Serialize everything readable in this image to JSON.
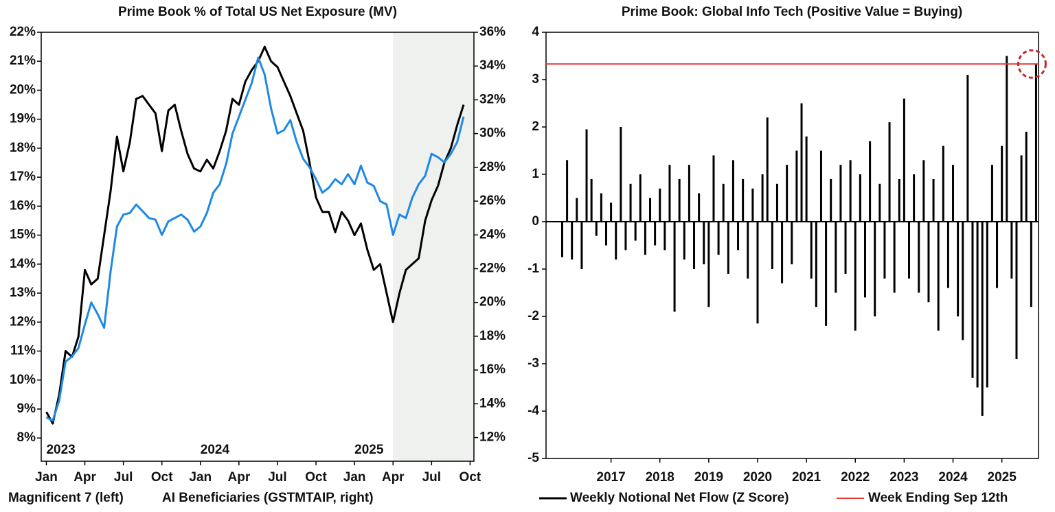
{
  "chart_data": [
    {
      "type": "line",
      "title": "Prime Book % of Total US Net Exposure (MV)",
      "x": [
        0,
        0.5,
        1,
        1.5,
        2,
        2.5,
        3,
        3.5,
        4,
        4.5,
        5,
        5.5,
        6,
        6.5,
        7,
        7.5,
        8,
        8.5,
        9,
        9.5,
        10,
        10.5,
        11,
        11.5,
        12,
        12.5,
        13,
        13.5,
        14,
        14.5,
        15,
        15.5,
        16,
        16.5,
        17,
        17.5,
        18,
        18.5,
        19,
        19.5,
        20,
        20.5,
        21,
        21.5,
        22,
        22.5,
        23,
        23.5,
        24,
        24.5,
        25,
        25.5,
        26,
        26.5,
        27,
        27.5,
        28,
        28.5,
        29,
        29.5,
        30,
        30.5,
        31,
        31.5,
        32,
        32.5
      ],
      "xlim": [
        -0.4,
        33.3
      ],
      "xticks": [
        {
          "value": 0,
          "label": "Jan"
        },
        {
          "value": 3,
          "label": "Apr"
        },
        {
          "value": 6,
          "label": "Jul"
        },
        {
          "value": 9,
          "label": "Oct"
        },
        {
          "value": 12,
          "label": "Jan"
        },
        {
          "value": 15,
          "label": "Apr"
        },
        {
          "value": 18,
          "label": "Jul"
        },
        {
          "value": 21,
          "label": "Oct"
        },
        {
          "value": 24,
          "label": "Jan"
        },
        {
          "value": 27,
          "label": "Apr"
        },
        {
          "value": 30,
          "label": "Jul"
        },
        {
          "value": 33,
          "label": "Oct"
        }
      ],
      "year_labels": [
        {
          "value": 0,
          "label": "2023"
        },
        {
          "value": 12,
          "label": "2024"
        },
        {
          "value": 24,
          "label": "2025"
        }
      ],
      "shaded_x": [
        27,
        33.3
      ],
      "shade_color": "#eef1ee",
      "ylim": [
        7.2,
        22
      ],
      "yticks": [
        {
          "value": 8,
          "label": "8%"
        },
        {
          "value": 9,
          "label": "9%"
        },
        {
          "value": 10,
          "label": "10%"
        },
        {
          "value": 11,
          "label": "11%"
        },
        {
          "value": 12,
          "label": "12%"
        },
        {
          "value": 13,
          "label": "13%"
        },
        {
          "value": 14,
          "label": "14%"
        },
        {
          "value": 15,
          "label": "15%"
        },
        {
          "value": 16,
          "label": "16%"
        },
        {
          "value": 17,
          "label": "17%"
        },
        {
          "value": 18,
          "label": "18%"
        },
        {
          "value": 19,
          "label": "19%"
        },
        {
          "value": 20,
          "label": "20%"
        },
        {
          "value": 21,
          "label": "21%"
        },
        {
          "value": 22,
          "label": "22%"
        }
      ],
      "y2lim": [
        10.6,
        36
      ],
      "y2ticks": [
        {
          "value": 12,
          "label": "12%"
        },
        {
          "value": 14,
          "label": "14%"
        },
        {
          "value": 16,
          "label": "16%"
        },
        {
          "value": 18,
          "label": "18%"
        },
        {
          "value": 20,
          "label": "20%"
        },
        {
          "value": 22,
          "label": "22%"
        },
        {
          "value": 24,
          "label": "24%"
        },
        {
          "value": 26,
          "label": "26%"
        },
        {
          "value": 28,
          "label": "28%"
        },
        {
          "value": 30,
          "label": "30%"
        },
        {
          "value": 32,
          "label": "32%"
        },
        {
          "value": 34,
          "label": "34%"
        },
        {
          "value": 36,
          "label": "36%"
        }
      ],
      "series": [
        {
          "name": "Magnificent 7 (left)",
          "color": "#000000",
          "values": [
            8.9,
            8.5,
            9.5,
            11.0,
            10.8,
            11.5,
            13.8,
            13.3,
            13.5,
            15.0,
            16.5,
            18.4,
            17.2,
            18.2,
            19.7,
            19.8,
            19.5,
            19.2,
            17.9,
            19.3,
            19.5,
            18.6,
            17.8,
            17.3,
            17.2,
            17.6,
            17.3,
            17.9,
            18.6,
            19.7,
            19.5,
            20.3,
            20.7,
            21.0,
            21.5,
            21.0,
            20.8,
            20.3,
            19.8,
            19.2,
            18.6,
            17.5,
            16.3,
            15.8,
            15.8,
            15.1,
            15.8,
            15.5,
            15.0,
            15.4,
            14.5,
            13.8,
            14.0,
            13.0,
            12.0,
            13.0,
            13.8,
            14.0,
            14.2,
            15.5,
            16.2,
            16.7,
            17.5,
            18.0,
            18.8,
            19.5
          ]
        },
        {
          "name": "AI Beneficiaries (GSTMTAIP, right)",
          "color": "#1e88e5",
          "axis": "y2",
          "values": [
            13.2,
            13.0,
            14.2,
            16.5,
            16.8,
            17.3,
            18.7,
            20.0,
            19.3,
            18.5,
            21.8,
            24.5,
            25.2,
            25.3,
            25.8,
            25.4,
            25.0,
            24.9,
            24.0,
            24.8,
            25.0,
            25.2,
            24.9,
            24.2,
            24.5,
            25.3,
            26.5,
            27.0,
            28.2,
            30.0,
            31.0,
            32.0,
            33.0,
            34.5,
            33.5,
            31.5,
            30.0,
            30.2,
            30.8,
            29.5,
            28.5,
            28.0,
            27.3,
            26.5,
            26.8,
            27.3,
            27.0,
            27.6,
            27.0,
            28.1,
            27.1,
            26.9,
            26.0,
            25.8,
            24.0,
            25.2,
            25.0,
            26.2,
            27.0,
            27.5,
            28.8,
            28.6,
            28.3,
            28.8,
            29.5,
            31.0
          ]
        }
      ]
    },
    {
      "type": "bar",
      "title": "Prime Book: Global Info Tech (Positive Value = Buying)",
      "x": [
        2016.0,
        2016.1,
        2016.2,
        2016.3,
        2016.4,
        2016.5,
        2016.6,
        2016.7,
        2016.8,
        2016.9,
        2017.0,
        2017.1,
        2017.2,
        2017.3,
        2017.4,
        2017.5,
        2017.6,
        2017.7,
        2017.8,
        2017.9,
        2018.0,
        2018.1,
        2018.2,
        2018.3,
        2018.4,
        2018.5,
        2018.6,
        2018.7,
        2018.8,
        2018.9,
        2019.0,
        2019.1,
        2019.2,
        2019.3,
        2019.4,
        2019.5,
        2019.6,
        2019.7,
        2019.8,
        2019.9,
        2020.0,
        2020.1,
        2020.2,
        2020.3,
        2020.4,
        2020.5,
        2020.6,
        2020.7,
        2020.8,
        2020.9,
        2021.0,
        2021.1,
        2021.2,
        2021.3,
        2021.4,
        2021.5,
        2021.6,
        2021.7,
        2021.8,
        2021.9,
        2022.0,
        2022.1,
        2022.2,
        2022.3,
        2022.4,
        2022.5,
        2022.6,
        2022.7,
        2022.8,
        2022.9,
        2023.0,
        2023.1,
        2023.2,
        2023.3,
        2023.4,
        2023.5,
        2023.6,
        2023.7,
        2023.8,
        2023.9,
        2024.0,
        2024.1,
        2024.2,
        2024.3,
        2024.4,
        2024.5,
        2024.6,
        2024.7,
        2024.8,
        2024.9,
        2025.0,
        2025.1,
        2025.2,
        2025.3,
        2025.4,
        2025.5,
        2025.6,
        2025.7
      ],
      "xlim": [
        2015.67,
        2025.75
      ],
      "xticks": [
        2017,
        2018,
        2019,
        2020,
        2021,
        2022,
        2023,
        2024,
        2025
      ],
      "ylim": [
        -5,
        4
      ],
      "yticks": [
        -5,
        -4,
        -3,
        -2,
        -1,
        0,
        1,
        2,
        3,
        4
      ],
      "series": [
        {
          "name": "Weekly Notional Net Flow (Z Score)",
          "color": "#000000",
          "values": [
            -0.75,
            1.3,
            -0.8,
            0.5,
            -1.0,
            1.95,
            0.9,
            -0.3,
            0.6,
            -0.5,
            0.4,
            -0.8,
            2.0,
            -0.6,
            0.8,
            -0.4,
            1.0,
            -0.7,
            0.5,
            -0.5,
            0.7,
            -0.6,
            1.2,
            -1.9,
            0.9,
            -0.8,
            1.2,
            -1.0,
            0.6,
            -0.9,
            -1.8,
            1.4,
            -0.7,
            0.8,
            -1.1,
            1.3,
            -0.6,
            0.9,
            -1.2,
            0.7,
            -2.15,
            1.0,
            2.2,
            -1.0,
            0.8,
            -1.3,
            1.2,
            -0.9,
            1.5,
            2.5,
            1.8,
            -1.2,
            -1.8,
            1.5,
            -2.2,
            0.9,
            -1.5,
            1.2,
            -1.1,
            1.3,
            -2.3,
            1.0,
            -1.6,
            1.7,
            -2.0,
            0.8,
            -1.2,
            2.1,
            -1.5,
            0.9,
            2.6,
            -1.2,
            1.0,
            -1.5,
            1.3,
            -1.7,
            0.9,
            -2.3,
            1.6,
            -1.4,
            1.2,
            -2.0,
            -2.5,
            3.1,
            -3.3,
            -3.5,
            -4.1,
            -3.5,
            1.2,
            -1.4,
            1.6,
            3.5,
            -1.2,
            -2.9,
            1.4,
            1.9,
            -1.8,
            3.33
          ]
        }
      ],
      "reference_line": {
        "name": "Week Ending Sep 12th",
        "value": 3.33,
        "color": "#e53935"
      }
    }
  ]
}
